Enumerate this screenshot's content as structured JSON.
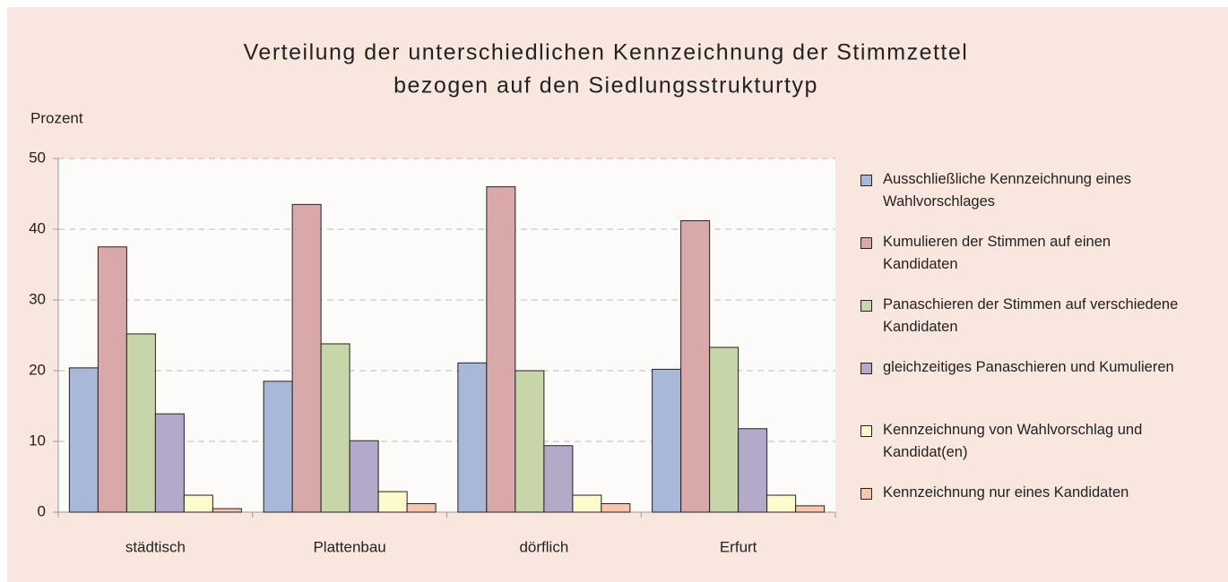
{
  "chart_data": {
    "type": "bar",
    "title": [
      "Verteilung der unterschiedlichen Kennzeichnung der Stimmzettel",
      "bezogen auf den Siedlungsstrukturtyp"
    ],
    "y_label": "Prozent",
    "categories": [
      "städtisch",
      "Plattenbau",
      "dörflich",
      "Erfurt"
    ],
    "series": [
      {
        "name": "Ausschließliche Kennzeichnung eines Wahlvorschlages",
        "color": "#a9b8d8",
        "values": [
          20.4,
          18.5,
          21.1,
          20.2
        ]
      },
      {
        "name": "Kumulieren der Stimmen auf einen Kandidaten",
        "color": "#d9a9a9",
        "values": [
          37.5,
          43.5,
          46.0,
          41.2
        ]
      },
      {
        "name": "Panaschieren der Stimmen auf verschiedene Kandidaten",
        "color": "#c6d6a9",
        "values": [
          25.2,
          23.8,
          20.0,
          23.3
        ]
      },
      {
        "name": "gleichzeitiges Panaschieren und Kumulieren",
        "color": "#b3a9c9",
        "values": [
          13.9,
          10.1,
          9.4,
          11.8
        ]
      },
      {
        "name": "Kennzeichnung von Wahlvorschlag  und Kandidat(en)",
        "color": "#fdfbcc",
        "values": [
          2.4,
          2.9,
          2.4,
          2.4
        ]
      },
      {
        "name": "Kennzeichnung nur eines Kandidaten",
        "color": "#f9c6ad",
        "values": [
          0.5,
          1.2,
          1.2,
          0.9
        ]
      }
    ],
    "ylim": [
      0,
      50
    ],
    "yticks": [
      0,
      10,
      20,
      30,
      40,
      50
    ],
    "grid": true,
    "legend": "right"
  }
}
